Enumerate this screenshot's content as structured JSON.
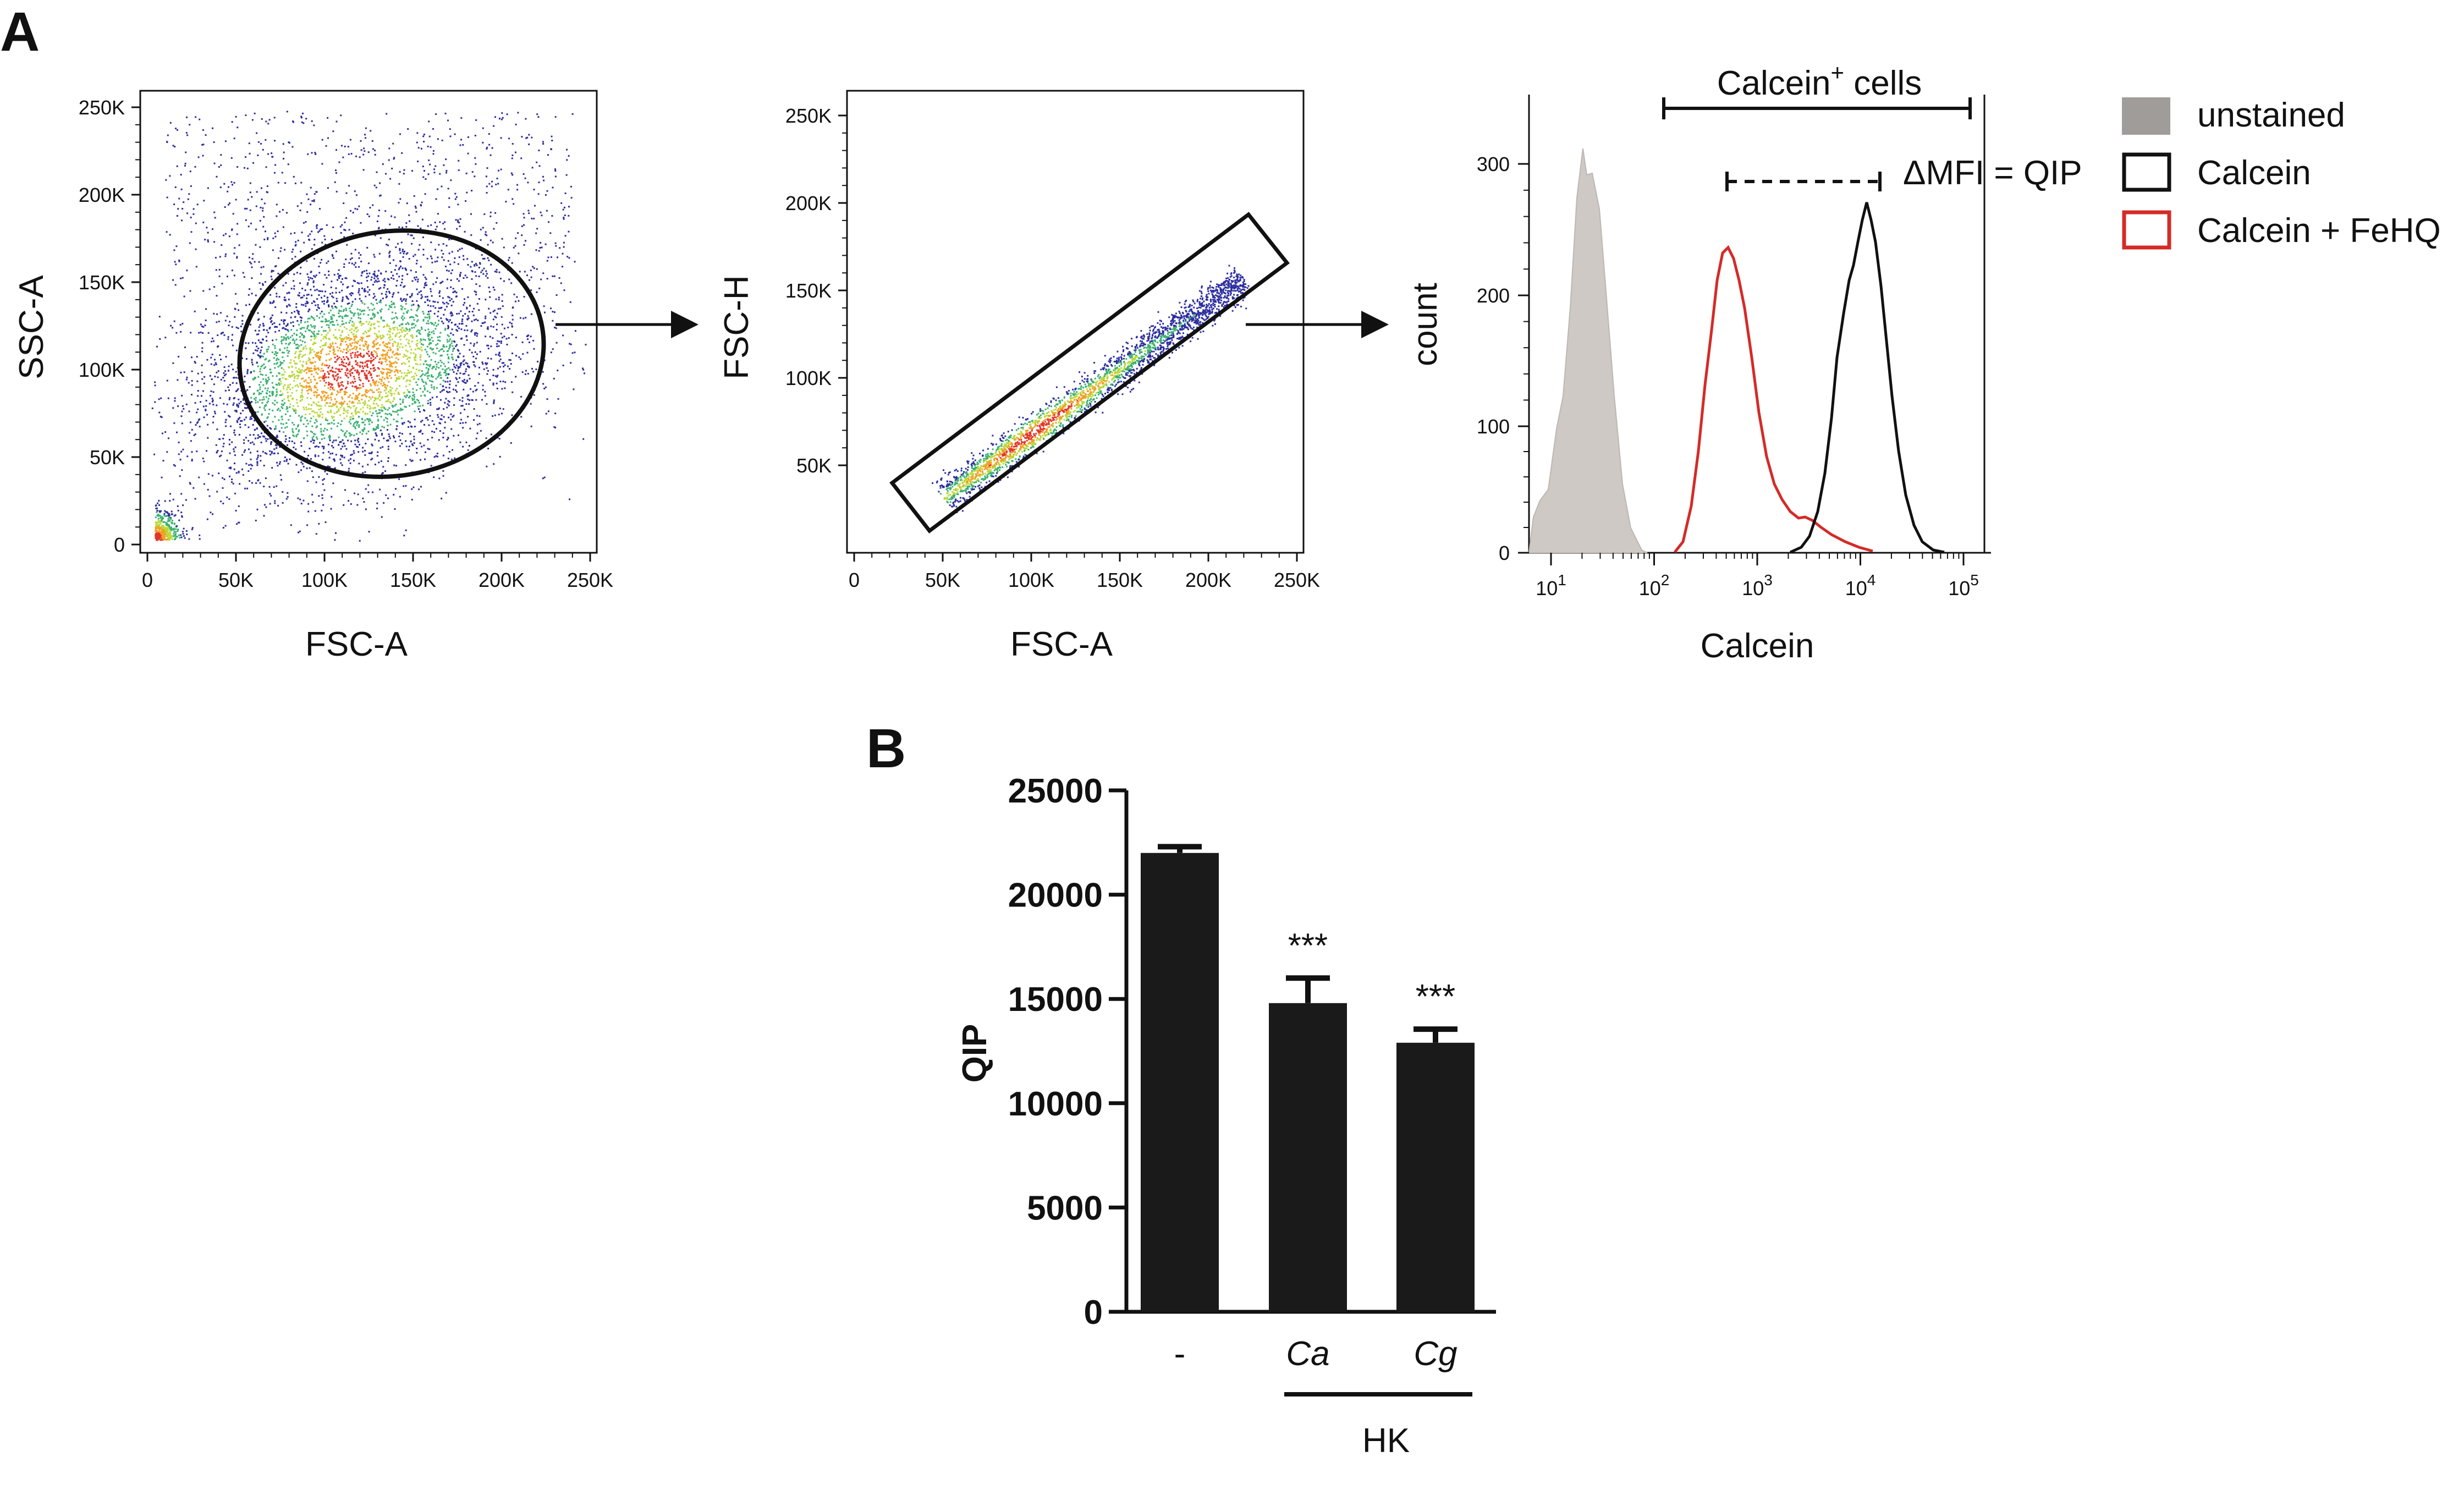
{
  "panels": {
    "a": "A",
    "b": "B"
  },
  "scatter1": {
    "xlabel": "FSC-A",
    "ylabel": "SSC-A",
    "xticks": [
      "0",
      "50K",
      "100K",
      "150K",
      "200K",
      "250K"
    ],
    "yticks": [
      "0",
      "50K",
      "100K",
      "150K",
      "200K",
      "250K"
    ]
  },
  "scatter2": {
    "xlabel": "FSC-A",
    "ylabel": "FSC-H",
    "xticks": [
      "0",
      "50K",
      "100K",
      "150K",
      "200K",
      "250K"
    ],
    "yticks": [
      "50K",
      "100K",
      "150K",
      "200K",
      "250K"
    ]
  },
  "histogram": {
    "xlabel": "Calcein",
    "ylabel": "count",
    "yticks": [
      "0",
      "100",
      "200",
      "300"
    ],
    "xtick_base": "10",
    "xtick_exps": [
      "1",
      "2",
      "3",
      "4",
      "5"
    ],
    "gate_label": "Calcein",
    "gate_sup": "+",
    "gate_suffix": " cells",
    "mfi_label": "ΔMFI = QIP",
    "legend": [
      {
        "label": "unstained",
        "color": "#a09c99",
        "filled": true
      },
      {
        "label": "Calcein",
        "color": "#111111",
        "filled": false
      },
      {
        "label": "Calcein + FeHQ",
        "color": "#d42b27",
        "filled": false
      }
    ]
  },
  "chart_data": {
    "type": "bar",
    "ylabel": "QIP",
    "yticks": [
      "0",
      "5000",
      "10000",
      "15000",
      "20000",
      "25000"
    ],
    "ylim": [
      0,
      25000
    ],
    "categories": [
      "-",
      "Ca",
      "Cg"
    ],
    "values": [
      22000,
      14800,
      12900
    ],
    "errors": [
      300,
      1200,
      650
    ],
    "annotations": [
      "",
      "***",
      "***"
    ],
    "group_label": "HK",
    "bar_color": "#1a1a1a"
  }
}
